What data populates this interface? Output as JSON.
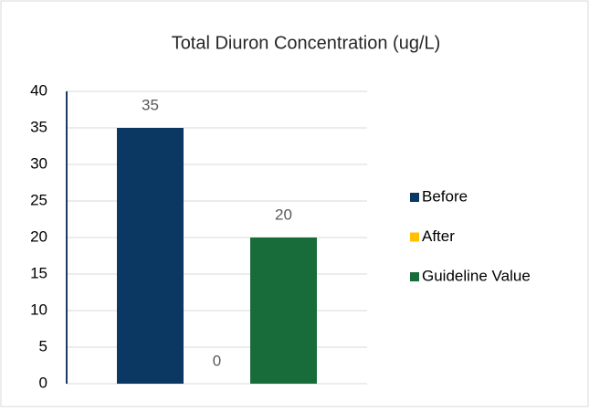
{
  "chart_data": {
    "type": "bar",
    "title": "Total Diuron Concentration (ug/L)",
    "categories": [
      null
    ],
    "series": [
      {
        "name": "Before",
        "color": "#0b3763",
        "values": [
          35
        ]
      },
      {
        "name": "After",
        "color": "#ffc000",
        "values": [
          0
        ]
      },
      {
        "name": "Guideline Value",
        "color": "#186c3a",
        "values": [
          20
        ]
      }
    ],
    "ylim": [
      0,
      40
    ],
    "yticks": [
      0,
      5,
      10,
      15,
      20,
      25,
      30,
      35,
      40
    ],
    "grid": true,
    "legend": "right"
  }
}
